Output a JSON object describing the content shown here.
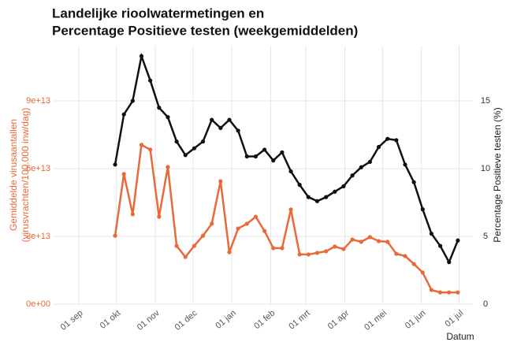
{
  "chart_data": {
    "type": "line",
    "title": [
      "Landelijke rioolwatermetingen en",
      "Percentage Positieve testen (weekgemiddelden)"
    ],
    "ylabel": [
      "Gemiddelde virusaantallen",
      "(virusvrachten/100.000 inw/dag)"
    ],
    "y2label": "Percentage Positieve testen (%)",
    "xlabel": "Datum",
    "x": [
      29,
      36,
      43,
      50,
      57,
      64,
      71,
      78,
      85,
      92,
      99,
      106,
      113,
      120,
      127,
      134,
      141,
      148,
      155,
      162,
      169,
      176,
      183,
      190,
      197,
      204,
      211,
      218,
      225,
      232,
      239,
      246,
      253,
      260,
      267,
      274,
      281,
      288,
      295,
      302
    ],
    "xlim": [
      -20,
      314
    ],
    "xticks": [
      {
        "value": 0,
        "label": "01 sep"
      },
      {
        "value": 30,
        "label": "01 okt"
      },
      {
        "value": 61,
        "label": "01 nov"
      },
      {
        "value": 91,
        "label": "01 dec"
      },
      {
        "value": 122,
        "label": "01 jan"
      },
      {
        "value": 153,
        "label": "01 feb"
      },
      {
        "value": 181,
        "label": "01 mrt"
      },
      {
        "value": 212,
        "label": "01 apr"
      },
      {
        "value": 242,
        "label": "01 mei"
      },
      {
        "value": 273,
        "label": "01 jun"
      },
      {
        "value": 303,
        "label": "01 jul"
      }
    ],
    "ylim": [
      0,
      114400000000000.0
    ],
    "yticks": [
      {
        "value": 0,
        "label": "0e+00"
      },
      {
        "value": 30000000000000.0,
        "label": "3e+13"
      },
      {
        "value": 60000000000000.0,
        "label": "6e+13"
      },
      {
        "value": 90000000000000.0,
        "label": "9e+13"
      }
    ],
    "y2lim": [
      0,
      19.07
    ],
    "y2ticks": [
      0,
      5,
      10,
      15
    ],
    "grid": true,
    "series": [
      {
        "name": "Gemiddelde virusaantallen",
        "color": "#e8693a",
        "values": [
          30300000000000.0,
          57600000000000.0,
          39800000000000.0,
          70500000000000.0,
          68400000000000.0,
          38700000000000.0,
          60700000000000.0,
          25800000000000.0,
          20900000000000.0,
          25800000000000.0,
          30300000000000.0,
          35600000000000.0,
          54400000000000.0,
          23000000000000.0,
          33500000000000.0,
          35600000000000.0,
          38700000000000.0,
          32400000000000.0,
          24800000000000.0,
          24800000000000.0,
          41900000000000.0,
          22000000000000.0,
          22000000000000.0,
          22700000000000.0,
          23400000000000.0,
          25500000000000.0,
          24400000000000.0,
          28600000000000.0,
          27600000000000.0,
          29700000000000.0,
          27900000000000.0,
          27600000000000.0,
          22300000000000.0,
          21300000000000.0,
          17800000000000.0,
          14000000000000.0,
          6300000000000.0,
          5200000000000.0,
          5200000000000.0,
          5200000000000.0
        ]
      },
      {
        "name": "Percentage Positieve testen",
        "color": "#111111",
        "axis": "y2",
        "values": [
          10.3,
          14.0,
          15.0,
          18.3,
          16.5,
          14.5,
          13.8,
          12.0,
          11.0,
          11.5,
          12.0,
          13.6,
          13.0,
          13.6,
          12.8,
          10.9,
          10.9,
          11.4,
          10.6,
          11.2,
          9.8,
          8.8,
          7.9,
          7.6,
          7.9,
          8.3,
          8.7,
          9.5,
          10.1,
          10.5,
          11.6,
          12.2,
          12.1,
          10.3,
          9.0,
          7.0,
          5.2,
          4.3,
          3.1,
          4.7
        ]
      }
    ]
  }
}
